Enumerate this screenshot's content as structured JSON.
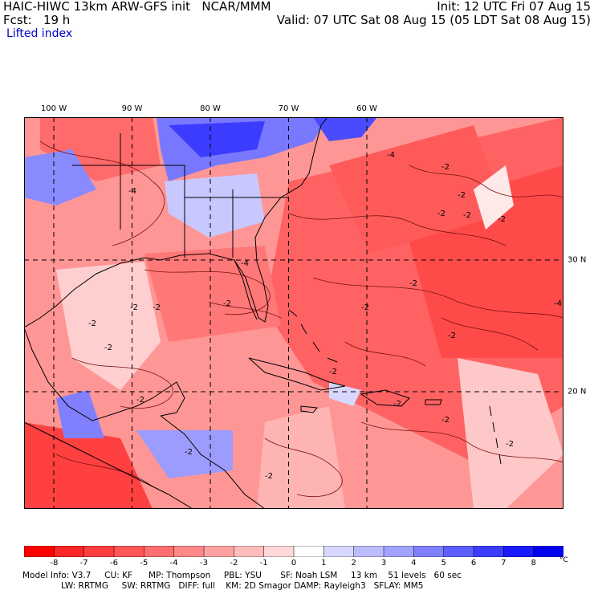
{
  "header": {
    "model_line": "HAIC-HIWC 13km ARW-GFS init",
    "org": "NCAR/MMM",
    "fcst_label": "Fcst:",
    "fcst_value": "19 h",
    "init": "Init: 12 UTC Fri 07 Aug 15",
    "valid": "Valid: 07 UTC Sat 08 Aug 15 (05 LDT Sat 08 Aug 15)",
    "field": "Lifted index"
  },
  "grid": {
    "lon_labels": [
      {
        "text": "100 W",
        "lon": 100
      },
      {
        "text": "90 W",
        "lon": 90
      },
      {
        "text": "80 W",
        "lon": 80
      },
      {
        "text": "70 W",
        "lon": 70
      },
      {
        "text": "60 W",
        "lon": 60
      }
    ],
    "lat_labels": [
      {
        "text": "30 N",
        "lat": 30
      },
      {
        "text": "20 N",
        "lat": 20
      }
    ]
  },
  "colorbar": {
    "labels": [
      "-8",
      "-7",
      "-6",
      "-5",
      "-4",
      "-3",
      "-2",
      "-1",
      "0",
      "1",
      "2",
      "3",
      "4",
      "5",
      "6",
      "7",
      "8"
    ],
    "unit": "°C",
    "colors": [
      "#ff0000",
      "#ff2626",
      "#ff3f3f",
      "#ff5656",
      "#ff6e6e",
      "#ff8888",
      "#ffa2a2",
      "#ffbcbc",
      "#ffd8d8",
      "#ffffff",
      "#d8d8ff",
      "#bcbcff",
      "#a2a2ff",
      "#8080ff",
      "#5e5eff",
      "#3c3cff",
      "#1a1aff",
      "#0000ee"
    ]
  },
  "model_info": {
    "line1": "Model Info: V3.7     CU: KF      MP: Thompson     PBL: YSU       SF: Noah LSM     13 km    51 levels   60 sec",
    "line2": "LW: RRTMG     SW: RRTMG   DIFF: full    KM: 2D Smagor DAMP: Rayleigh3   SFLAY: MM5"
  },
  "contour_labels": [
    "-4",
    "-2",
    "-2",
    "-2",
    "-4",
    "-2",
    "-2",
    "-2",
    "-4",
    "-2",
    "-2",
    "-2",
    "-2",
    "-2",
    "-2",
    "-2",
    "-4",
    "-2",
    "-2",
    "-2",
    "-2",
    "-2",
    "-2",
    "-2"
  ]
}
